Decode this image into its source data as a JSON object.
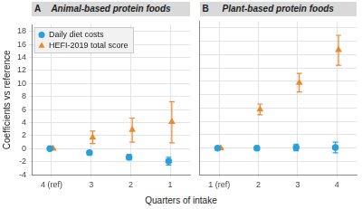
{
  "chart_data": [
    {
      "type": "scatter",
      "panel": "A",
      "title": "Animal-based protein foods",
      "categories": [
        "4 (ref)",
        "3",
        "2",
        "1"
      ],
      "y_label": "Coefficients vs reference",
      "x_label": "Quarters of intake",
      "ylim": [
        -4,
        19
      ],
      "yticks": [
        -4,
        -2,
        0,
        2,
        4,
        6,
        8,
        10,
        12,
        14,
        16,
        18
      ],
      "grid": true,
      "legend": "top left",
      "series": [
        {
          "name": "Daily diet costs",
          "color": "#2a9fd8",
          "marker": "circle",
          "values": [
            0,
            -0.6,
            -1.3,
            -1.9
          ],
          "lower": [
            0,
            -0.9,
            -1.7,
            -2.5
          ],
          "upper": [
            0,
            -0.3,
            -0.9,
            -1.3
          ]
        },
        {
          "name": "HEFI-2019 total score",
          "color": "#e8892b",
          "marker": "triangle",
          "values": [
            0,
            1.7,
            2.9,
            4.1
          ],
          "lower": [
            0,
            0.8,
            1.0,
            0.9
          ],
          "upper": [
            0,
            2.7,
            4.7,
            7.2
          ]
        }
      ]
    },
    {
      "type": "scatter",
      "panel": "B",
      "title": "Plant-based protein foods",
      "categories": [
        "1 (ref)",
        "2",
        "3",
        "4"
      ],
      "ylim": [
        -4,
        19
      ],
      "yticks": [
        -4,
        -2,
        0,
        2,
        4,
        6,
        8,
        10,
        12,
        14,
        16,
        18
      ],
      "grid": true,
      "tick_labels": "x",
      "series": [
        {
          "color": "#2a9fd8",
          "marker": "circle",
          "values": [
            0,
            0,
            0.1,
            0.1
          ],
          "lower": [
            0,
            -0.3,
            -0.4,
            -0.7
          ],
          "upper": [
            0,
            0.3,
            0.6,
            0.9
          ]
        },
        {
          "color": "#e8892b",
          "marker": "triangle",
          "values": [
            0,
            5.8,
            9.8,
            14.7
          ],
          "lower": [
            0,
            5.0,
            8.4,
            12.4
          ],
          "upper": [
            0,
            6.6,
            11.2,
            16.9
          ]
        }
      ]
    }
  ]
}
